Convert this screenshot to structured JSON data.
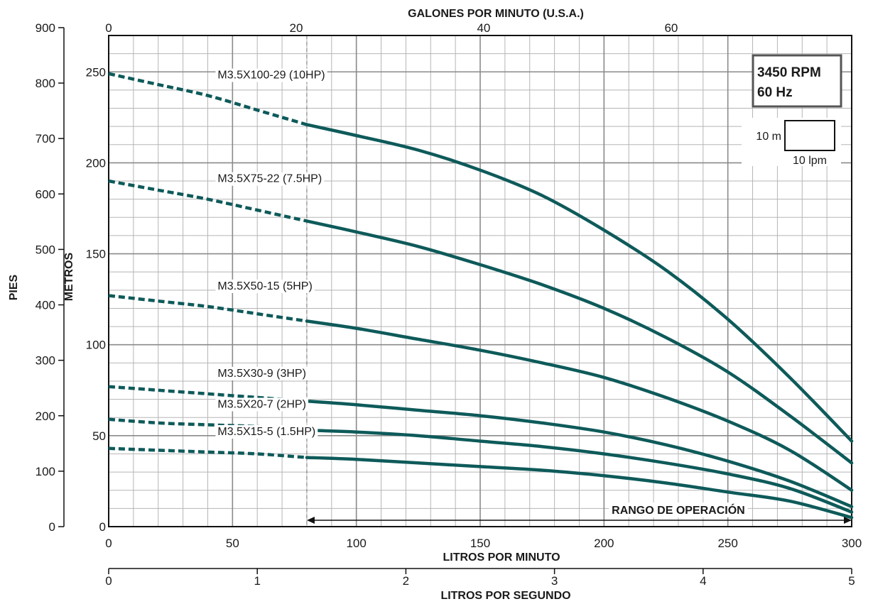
{
  "chart_data": {
    "type": "line",
    "title": "",
    "info_box": {
      "line1": "3450 RPM",
      "line2": "60 Hz"
    },
    "scale_legend": {
      "vertical": "10 m",
      "horizontal": "10 lpm"
    },
    "xlabel": "LITROS POR MINUTO",
    "xlabel_top": "GALONES POR MINUTO (U.S.A.)",
    "xlabel_bottom": "LITROS POR SEGUNDO",
    "ylabel": "METROS",
    "ylabel_outer": "PIES",
    "xlim": [
      0,
      300
    ],
    "ylim": [
      0,
      270
    ],
    "x_ticks": [
      "0",
      "50",
      "100",
      "150",
      "200",
      "250",
      "300"
    ],
    "x_ticks_top": [
      "0",
      "20",
      "40",
      "60"
    ],
    "x_ticks_bottom": [
      "0",
      "1",
      "2",
      "3",
      "4",
      "5"
    ],
    "y_ticks": [
      "0",
      "50",
      "100",
      "150",
      "200",
      "250"
    ],
    "y_ticks_outer": [
      "0",
      "100",
      "200",
      "300",
      "400",
      "500",
      "600",
      "700",
      "800",
      "900"
    ],
    "grid": true,
    "dashed_region_end_x": 80,
    "operating_range": {
      "label": "RANGO DE OPERACIÓN",
      "from": 80,
      "to": 300
    },
    "curve_color": "#0e5a5a",
    "series": [
      {
        "name": "M3.5X100-29 (10HP)",
        "x": [
          0,
          20,
          40,
          60,
          80,
          100,
          125,
          150,
          175,
          200,
          225,
          250,
          275,
          300
        ],
        "y": [
          249,
          243,
          237,
          229,
          221,
          215,
          207,
          196,
          182,
          163,
          141,
          114,
          82,
          47
        ]
      },
      {
        "name": "M3.5X75-22 (7.5HP)",
        "x": [
          0,
          20,
          40,
          60,
          80,
          100,
          125,
          150,
          175,
          200,
          225,
          250,
          275,
          300
        ],
        "y": [
          190,
          185,
          180,
          174,
          168,
          162,
          154,
          144,
          133,
          120,
          104,
          85,
          61,
          35
        ]
      },
      {
        "name": "M3.5X50-15 (5HP)",
        "x": [
          0,
          20,
          40,
          60,
          80,
          100,
          125,
          150,
          175,
          200,
          225,
          250,
          275,
          300
        ],
        "y": [
          127,
          124,
          121,
          117,
          113,
          109,
          103,
          97,
          90,
          82,
          71,
          58,
          42,
          20
        ]
      },
      {
        "name": "M3.5X30-9 (3HP)",
        "x": [
          0,
          20,
          40,
          60,
          80,
          100,
          125,
          150,
          175,
          200,
          225,
          250,
          275,
          300
        ],
        "y": [
          77,
          75,
          73,
          71,
          69,
          67,
          64,
          61,
          57,
          52,
          45,
          36,
          25,
          11
        ]
      },
      {
        "name": "M3.5X20-7 (2HP)",
        "x": [
          0,
          20,
          40,
          60,
          80,
          100,
          125,
          150,
          175,
          200,
          225,
          250,
          275,
          300
        ],
        "y": [
          59,
          57,
          56,
          55,
          53,
          52,
          50,
          47,
          44,
          40,
          35,
          29,
          21,
          8
        ]
      },
      {
        "name": "M3.5X15-5 (1.5HP)",
        "x": [
          0,
          20,
          40,
          60,
          80,
          100,
          125,
          150,
          175,
          200,
          225,
          250,
          275,
          300
        ],
        "y": [
          43,
          42,
          41,
          40,
          38,
          37,
          35,
          33,
          31,
          28,
          24,
          19,
          14,
          5
        ]
      }
    ]
  }
}
